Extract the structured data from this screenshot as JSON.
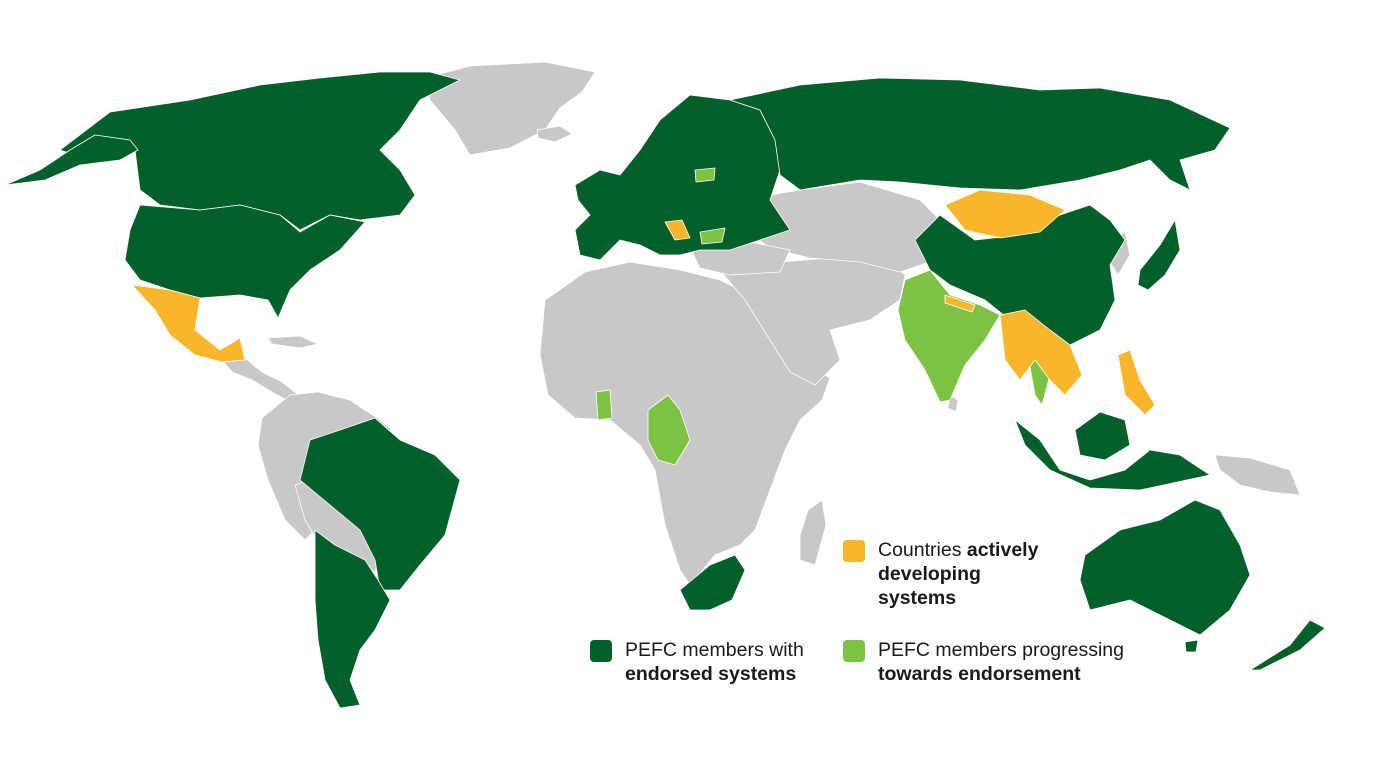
{
  "colors": {
    "ocean": "#ffffff",
    "non_member": "#c8c8c8",
    "endorsed": "#04602b",
    "progressing": "#7dc243",
    "developing": "#f8b62a"
  },
  "legend": {
    "developing": {
      "color_key": "developing",
      "line1_plain": "Countries ",
      "line1_bold": "actively",
      "line2_bold": "developing",
      "line3_bold": "systems"
    },
    "endorsed": {
      "color_key": "endorsed",
      "line1_plain": "PEFC members with",
      "line2_bold": "endorsed systems"
    },
    "progressing": {
      "color_key": "progressing",
      "line1_plain": "PEFC members progressing",
      "line2_bold": "towards endorsement"
    }
  },
  "regions": {
    "endorsed": [
      "Canada",
      "United States",
      "Brazil",
      "Argentina",
      "Chile",
      "Uruguay",
      "Russia",
      "China",
      "Japan",
      "Indonesia",
      "Malaysia",
      "Australia",
      "New Zealand",
      "South Africa",
      "Europe"
    ],
    "progressing": [
      "India",
      "Ghana",
      "Cameroon",
      "Gabon",
      "Republic of the Congo",
      "Thailand",
      "Bulgaria",
      "Lithuania"
    ],
    "developing": [
      "Mexico",
      "Guatemala",
      "Mongolia",
      "Nepal",
      "Myanmar",
      "Laos",
      "Vietnam",
      "Philippines",
      "Croatia"
    ]
  }
}
